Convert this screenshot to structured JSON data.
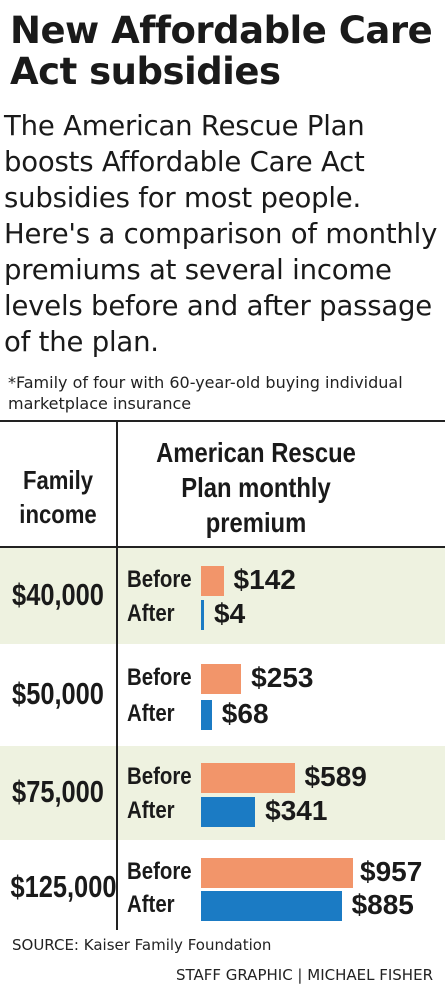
{
  "title": "New Affordable Care Act subsidies",
  "subtitle": "The American Rescue Plan boosts Affordable Care Act subsidies for most people. Here's a comparison of monthly premiums at several income levels before and after passage of the plan.",
  "footnote": "*Family of four with 60-year-old buying individual marketplace insurance",
  "columns": {
    "income": "Family income",
    "premium": "American Rescue Plan monthly premium"
  },
  "source": "SOURCE: Kaiser Family Foundation",
  "credit": "STAFF GRAPHIC | MICHAEL FISHER",
  "colors": {
    "before": "#f2956a",
    "after": "#1b7bc4",
    "row_shade": "#eef2e0"
  },
  "chart_data": {
    "type": "bar",
    "orientation": "horizontal",
    "categories": [
      "$40,000",
      "$50,000",
      "$75,000",
      "$125,000"
    ],
    "series": [
      {
        "name": "Before",
        "values": [
          142,
          253,
          589,
          957
        ],
        "labels": [
          "$142",
          "$253",
          "$589",
          "$957"
        ]
      },
      {
        "name": "After",
        "values": [
          4,
          68,
          341,
          885
        ],
        "labels": [
          "$4",
          "$68",
          "$341",
          "$885"
        ]
      }
    ]
  }
}
